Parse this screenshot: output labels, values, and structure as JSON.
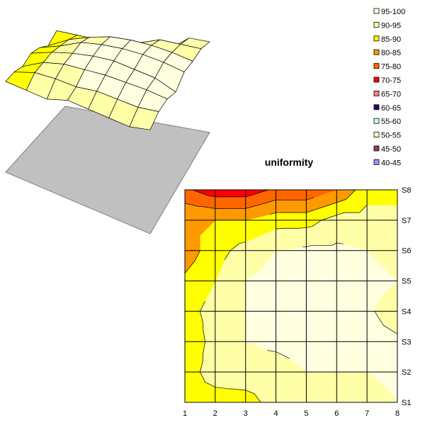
{
  "chart_data": [
    {
      "type": "surface",
      "view": "3d",
      "title": "",
      "x": [
        1,
        2,
        3,
        4,
        5,
        6,
        7,
        8
      ],
      "series_labels": [
        "S1",
        "S2",
        "S3",
        "S4",
        "S5",
        "S6",
        "S7",
        "S8"
      ],
      "zlim": [
        40,
        100
      ],
      "z": [
        [
          88,
          88,
          88,
          92,
          92,
          92,
          92,
          95
        ],
        [
          88,
          92,
          93,
          93,
          95,
          95,
          95,
          97
        ],
        [
          86,
          92,
          95,
          96,
          97,
          97,
          97,
          96
        ],
        [
          88,
          92,
          95,
          97,
          98,
          97,
          96,
          92
        ],
        [
          86,
          90,
          95,
          97,
          98,
          98,
          97,
          95
        ],
        [
          82,
          88,
          92,
          95,
          96,
          96,
          95,
          93
        ],
        [
          85,
          85,
          85,
          88,
          88,
          92,
          92,
          92
        ],
        [
          76,
          72,
          72,
          76,
          76,
          80,
          88,
          88
        ]
      ]
    },
    {
      "type": "contour",
      "title": "uniformity",
      "x": [
        1,
        2,
        3,
        4,
        5,
        6,
        7,
        8
      ],
      "x_tick_labels": [
        "1",
        "2",
        "3",
        "4",
        "5",
        "6",
        "7",
        "8"
      ],
      "series_labels": [
        "S1",
        "S2",
        "S3",
        "S4",
        "S5",
        "S6",
        "S7",
        "S8"
      ],
      "z": [
        [
          88,
          88,
          88,
          92,
          92,
          92,
          92,
          95
        ],
        [
          88,
          92,
          93,
          93,
          95,
          95,
          95,
          97
        ],
        [
          86,
          92,
          95,
          96,
          97,
          97,
          97,
          96
        ],
        [
          88,
          92,
          95,
          97,
          98,
          97,
          96,
          92
        ],
        [
          86,
          90,
          95,
          97,
          98,
          98,
          97,
          95
        ],
        [
          82,
          88,
          92,
          95,
          96,
          96,
          95,
          93
        ],
        [
          85,
          85,
          85,
          88,
          88,
          92,
          92,
          92
        ],
        [
          76,
          72,
          72,
          76,
          76,
          80,
          88,
          88
        ]
      ]
    }
  ],
  "legend": {
    "position": "top-right",
    "items": [
      {
        "label": "95-100",
        "min": 95,
        "max": 100,
        "color": "#ffffe0"
      },
      {
        "label": "90-95",
        "min": 90,
        "max": 95,
        "color": "#ffffa8"
      },
      {
        "label": "85-90",
        "min": 85,
        "max": 90,
        "color": "#ffff00"
      },
      {
        "label": "80-85",
        "min": 80,
        "max": 85,
        "color": "#ff9900"
      },
      {
        "label": "75-80",
        "min": 75,
        "max": 80,
        "color": "#ff6600"
      },
      {
        "label": "70-75",
        "min": 70,
        "max": 75,
        "color": "#ff0000"
      },
      {
        "label": "65-70",
        "min": 65,
        "max": 70,
        "color": "#ff8080"
      },
      {
        "label": "60-65",
        "min": 60,
        "max": 65,
        "color": "#330066"
      },
      {
        "label": "55-60",
        "min": 55,
        "max": 60,
        "color": "#ccffff"
      },
      {
        "label": "50-55",
        "min": 50,
        "max": 55,
        "color": "#ffffcc"
      },
      {
        "label": "45-50",
        "min": 45,
        "max": 50,
        "color": "#993366"
      },
      {
        "label": "40-45",
        "min": 40,
        "max": 45,
        "color": "#9999ff"
      }
    ]
  }
}
